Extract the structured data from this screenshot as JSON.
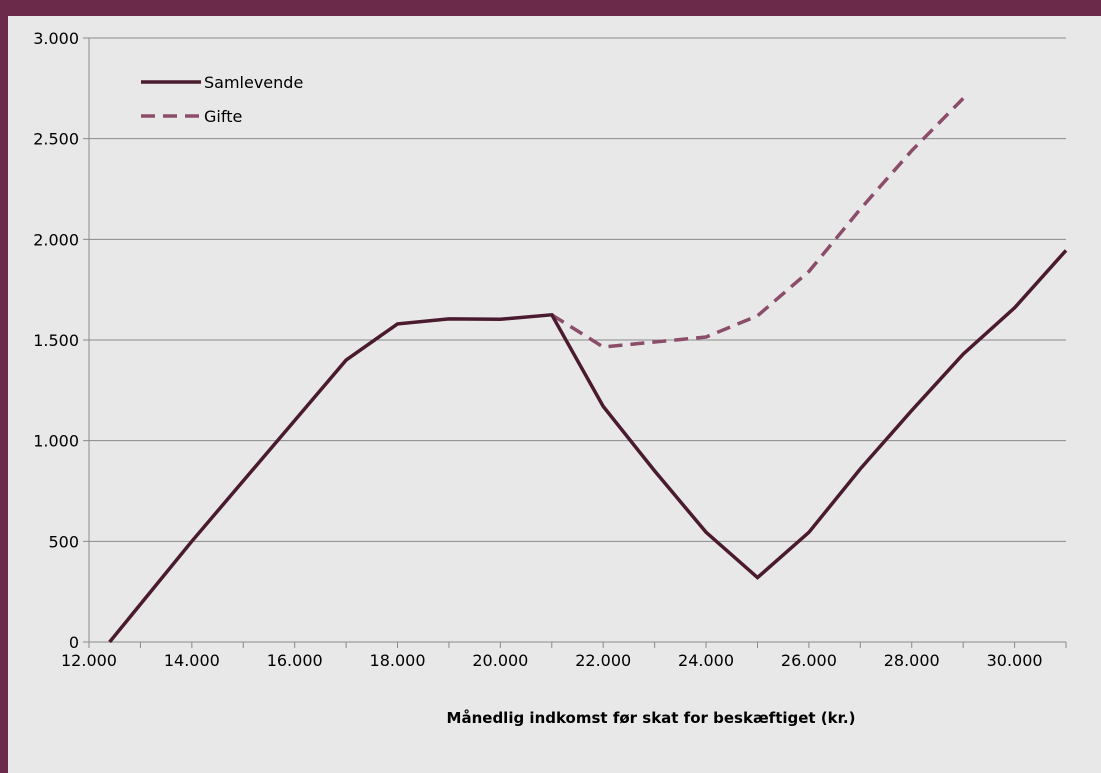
{
  "chart_data": {
    "type": "line",
    "title": "",
    "xlabel": "Månedlig indkomst før skat for beskæftiget (kr.)",
    "ylabel": "",
    "xlim": [
      12000,
      31000
    ],
    "ylim": [
      0,
      3000
    ],
    "x_ticks": [
      12000,
      14000,
      16000,
      18000,
      20000,
      22000,
      24000,
      26000,
      28000,
      30000
    ],
    "x_tick_labels": [
      "12.000",
      "14.000",
      "16.000",
      "18.000",
      "20.000",
      "22.000",
      "24.000",
      "26.000",
      "28.000",
      "30.000"
    ],
    "y_ticks": [
      0,
      500,
      1000,
      1500,
      2000,
      2500,
      3000
    ],
    "y_tick_labels": [
      "0",
      "500",
      "1.000",
      "1.500",
      "2.000",
      "2.500",
      "3.000"
    ],
    "grid": "horizontal",
    "legend_position": "top-left",
    "series": [
      {
        "name": "Samlevende",
        "style": "solid",
        "color": "#4a1a2e",
        "x": [
          12400,
          14000,
          16000,
          17000,
          18000,
          19000,
          20000,
          21000,
          22000,
          23000,
          24000,
          25000,
          26000,
          27000,
          28000,
          29000,
          30000,
          31000
        ],
        "y": [
          0,
          500,
          1100,
          1400,
          1580,
          1605,
          1603,
          1625,
          1170,
          850,
          545,
          320,
          545,
          860,
          1150,
          1430,
          1660,
          1945
        ]
      },
      {
        "name": "Gifte",
        "style": "dashed",
        "color": "#8c4d6a",
        "x": [
          21000,
          22000,
          23000,
          24000,
          25000,
          26000,
          27000,
          28000,
          29000
        ],
        "y": [
          1625,
          1465,
          1490,
          1515,
          1620,
          1840,
          2150,
          2440,
          2700
        ]
      }
    ]
  }
}
